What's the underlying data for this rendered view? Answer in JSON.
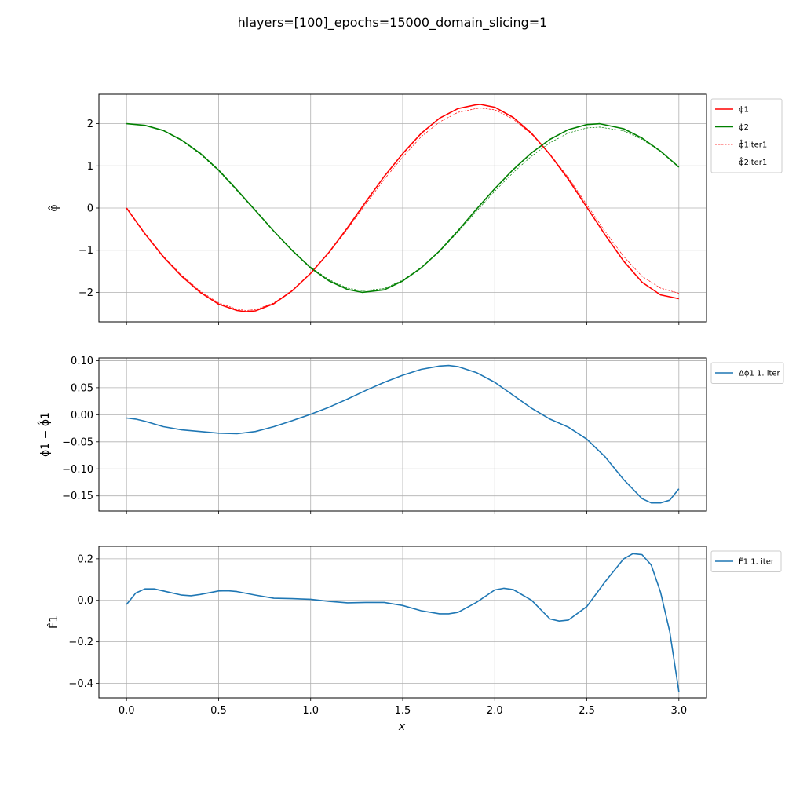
{
  "figure": {
    "suptitle": "hlayers=[100]_epochs=15000_domain_slicing=1",
    "xlabel": "x",
    "x_ticks": [
      0.0,
      0.5,
      1.0,
      1.5,
      2.0,
      2.5,
      3.0
    ],
    "x_tick_labels": [
      "0.0",
      "0.5",
      "1.0",
      "1.5",
      "2.0",
      "2.5",
      "3.0"
    ],
    "xlim": [
      -0.15,
      3.15
    ],
    "colors": {
      "red": "#ff0000",
      "green": "#008000",
      "blue": "#1f77b4",
      "grid": "#b0b0b0"
    }
  },
  "chart_data": [
    {
      "type": "line",
      "ylabel": "φ̂",
      "ylim": [
        -2.7,
        2.7
      ],
      "y_ticks": [
        -2,
        -1,
        0,
        1,
        2
      ],
      "y_tick_labels": [
        "−2",
        "−1",
        "0",
        "1",
        "2"
      ],
      "grid": true,
      "legend_placement": "outside-right-top",
      "series": [
        {
          "name": "ϕ1",
          "color": "#ff0000",
          "style": "solid",
          "width": 1.6,
          "x": [
            0.0,
            0.1,
            0.2,
            0.3,
            0.4,
            0.5,
            0.6,
            0.65,
            0.7,
            0.8,
            0.9,
            1.0,
            1.1,
            1.2,
            1.3,
            1.4,
            1.5,
            1.6,
            1.7,
            1.8,
            1.9,
            1.92,
            2.0,
            2.1,
            2.2,
            2.3,
            2.4,
            2.5,
            2.6,
            2.7,
            2.8,
            2.9,
            3.0
          ],
          "y": [
            0.0,
            -0.61,
            -1.16,
            -1.62,
            -2.0,
            -2.28,
            -2.43,
            -2.46,
            -2.44,
            -2.27,
            -1.96,
            -1.55,
            -1.05,
            -0.47,
            0.15,
            0.75,
            1.29,
            1.77,
            2.13,
            2.36,
            2.45,
            2.46,
            2.39,
            2.15,
            1.77,
            1.27,
            0.68,
            0.02,
            -0.64,
            -1.26,
            -1.76,
            -2.06,
            -2.15
          ]
        },
        {
          "name": "ϕ2",
          "color": "#008000",
          "style": "solid",
          "width": 1.6,
          "x": [
            0.0,
            0.1,
            0.2,
            0.3,
            0.4,
            0.5,
            0.6,
            0.7,
            0.8,
            0.9,
            1.0,
            1.1,
            1.2,
            1.28,
            1.4,
            1.5,
            1.6,
            1.7,
            1.8,
            1.9,
            2.0,
            2.1,
            2.2,
            2.3,
            2.4,
            2.5,
            2.57,
            2.7,
            2.8,
            2.9,
            3.0
          ],
          "y": [
            2.0,
            1.96,
            1.84,
            1.61,
            1.3,
            0.9,
            0.43,
            -0.06,
            -0.55,
            -1.01,
            -1.42,
            -1.73,
            -1.93,
            -2.0,
            -1.94,
            -1.73,
            -1.42,
            -1.02,
            -0.54,
            -0.03,
            0.46,
            0.91,
            1.31,
            1.63,
            1.86,
            1.98,
            2.0,
            1.88,
            1.66,
            1.35,
            0.97
          ]
        },
        {
          "name": "ϕ̂1iter1",
          "color": "#ff0000",
          "style": "dashed",
          "width": 0.7,
          "x": [
            0.0,
            0.1,
            0.2,
            0.3,
            0.4,
            0.5,
            0.6,
            0.65,
            0.7,
            0.8,
            0.9,
            1.0,
            1.1,
            1.2,
            1.3,
            1.4,
            1.5,
            1.6,
            1.7,
            1.8,
            1.9,
            1.92,
            2.0,
            2.1,
            2.2,
            2.3,
            2.4,
            2.5,
            2.6,
            2.7,
            2.8,
            2.9,
            3.0
          ],
          "y": [
            0.0,
            -0.6,
            -1.14,
            -1.59,
            -1.97,
            -2.25,
            -2.4,
            -2.43,
            -2.41,
            -2.25,
            -1.96,
            -1.55,
            -1.06,
            -0.5,
            0.1,
            0.68,
            1.21,
            1.69,
            2.04,
            2.27,
            2.36,
            2.37,
            2.33,
            2.11,
            1.75,
            1.28,
            0.72,
            0.08,
            -0.56,
            -1.15,
            -1.62,
            -1.9,
            -2.02
          ]
        },
        {
          "name": "ϕ̂2iter1",
          "color": "#008000",
          "style": "dashed",
          "width": 0.7,
          "x": [
            0.0,
            0.1,
            0.2,
            0.3,
            0.4,
            0.5,
            0.6,
            0.7,
            0.8,
            0.9,
            1.0,
            1.1,
            1.2,
            1.28,
            1.4,
            1.5,
            1.6,
            1.7,
            1.8,
            1.9,
            2.0,
            2.1,
            2.2,
            2.3,
            2.4,
            2.5,
            2.57,
            2.7,
            2.8,
            2.9,
            3.0
          ],
          "y": [
            2.0,
            1.96,
            1.83,
            1.6,
            1.28,
            0.88,
            0.41,
            -0.07,
            -0.55,
            -1.0,
            -1.4,
            -1.7,
            -1.9,
            -1.96,
            -1.91,
            -1.71,
            -1.41,
            -1.03,
            -0.57,
            -0.08,
            0.4,
            0.84,
            1.23,
            1.55,
            1.78,
            1.9,
            1.92,
            1.83,
            1.63,
            1.34,
            0.98
          ]
        }
      ]
    },
    {
      "type": "line",
      "ylabel": "ϕ1 − ϕ̂1",
      "ylim": [
        -0.178,
        0.105
      ],
      "y_ticks": [
        0.1,
        0.05,
        0.0,
        -0.05,
        -0.1,
        -0.15
      ],
      "y_tick_labels": [
        "0.10",
        "0.05",
        "0.00",
        "−0.05",
        "−0.10",
        "−0.15"
      ],
      "grid": true,
      "legend_placement": "outside-right-top",
      "series": [
        {
          "name": "Δϕ1 1. iter",
          "color": "#1f77b4",
          "style": "solid",
          "width": 1.6,
          "x": [
            0.0,
            0.05,
            0.1,
            0.2,
            0.3,
            0.4,
            0.5,
            0.6,
            0.7,
            0.8,
            0.9,
            1.0,
            1.1,
            1.2,
            1.3,
            1.4,
            1.5,
            1.6,
            1.7,
            1.75,
            1.8,
            1.9,
            2.0,
            2.1,
            2.2,
            2.3,
            2.4,
            2.5,
            2.6,
            2.7,
            2.8,
            2.85,
            2.9,
            2.95,
            3.0
          ],
          "y": [
            -0.006,
            -0.008,
            -0.012,
            -0.022,
            -0.028,
            -0.031,
            -0.034,
            -0.035,
            -0.031,
            -0.022,
            -0.011,
            0.001,
            0.014,
            0.029,
            0.045,
            0.06,
            0.073,
            0.084,
            0.09,
            0.091,
            0.089,
            0.078,
            0.06,
            0.036,
            0.012,
            -0.008,
            -0.023,
            -0.045,
            -0.078,
            -0.12,
            -0.155,
            -0.163,
            -0.163,
            -0.158,
            -0.137
          ]
        }
      ]
    },
    {
      "type": "line",
      "ylabel": "F̂1",
      "ylim": [
        -0.47,
        0.26
      ],
      "y_ticks": [
        0.2,
        0.0,
        -0.2,
        -0.4
      ],
      "y_tick_labels": [
        "0.2",
        "0.0",
        "−0.2",
        "−0.4"
      ],
      "grid": true,
      "legend_placement": "outside-right-top",
      "series": [
        {
          "name": "F̂1 1. iter",
          "color": "#1f77b4",
          "style": "solid",
          "width": 1.6,
          "x": [
            0.0,
            0.05,
            0.1,
            0.15,
            0.2,
            0.3,
            0.35,
            0.4,
            0.5,
            0.55,
            0.6,
            0.7,
            0.8,
            0.9,
            1.0,
            1.1,
            1.2,
            1.3,
            1.4,
            1.5,
            1.6,
            1.7,
            1.75,
            1.8,
            1.9,
            2.0,
            2.05,
            2.1,
            2.2,
            2.3,
            2.35,
            2.4,
            2.5,
            2.6,
            2.7,
            2.75,
            2.8,
            2.85,
            2.9,
            2.95,
            3.0
          ],
          "y": [
            -0.02,
            0.035,
            0.055,
            0.055,
            0.045,
            0.025,
            0.022,
            0.028,
            0.045,
            0.046,
            0.042,
            0.025,
            0.01,
            0.008,
            0.005,
            -0.005,
            -0.012,
            -0.01,
            -0.01,
            -0.025,
            -0.05,
            -0.065,
            -0.065,
            -0.058,
            -0.01,
            0.05,
            0.058,
            0.052,
            0.0,
            -0.09,
            -0.1,
            -0.095,
            -0.03,
            0.09,
            0.2,
            0.225,
            0.22,
            0.17,
            0.04,
            -0.15,
            -0.44
          ]
        }
      ]
    }
  ]
}
